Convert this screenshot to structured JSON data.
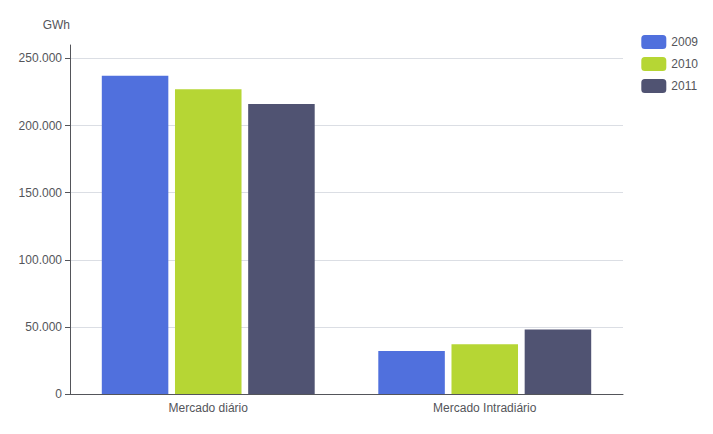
{
  "chart_data": {
    "type": "bar",
    "categories": [
      "Mercado diário",
      "Mercado Intradiário"
    ],
    "series": [
      {
        "name": "2009",
        "values": [
          237000,
          32000
        ]
      },
      {
        "name": "2010",
        "values": [
          227000,
          37000
        ]
      },
      {
        "name": "2011",
        "values": [
          216000,
          48000
        ]
      }
    ],
    "ylabel": "GWh",
    "ylim": [
      0,
      260000
    ],
    "yticks": [
      0,
      {
        "value": 50000,
        "label": "50.000"
      },
      {
        "value": 100000,
        "label": "100.000"
      },
      {
        "value": 150000,
        "label": "150.000"
      },
      {
        "value": 200000,
        "label": "200.000"
      },
      {
        "value": 250000,
        "label": "250.000"
      }
    ],
    "grid": true,
    "legend": "right"
  }
}
